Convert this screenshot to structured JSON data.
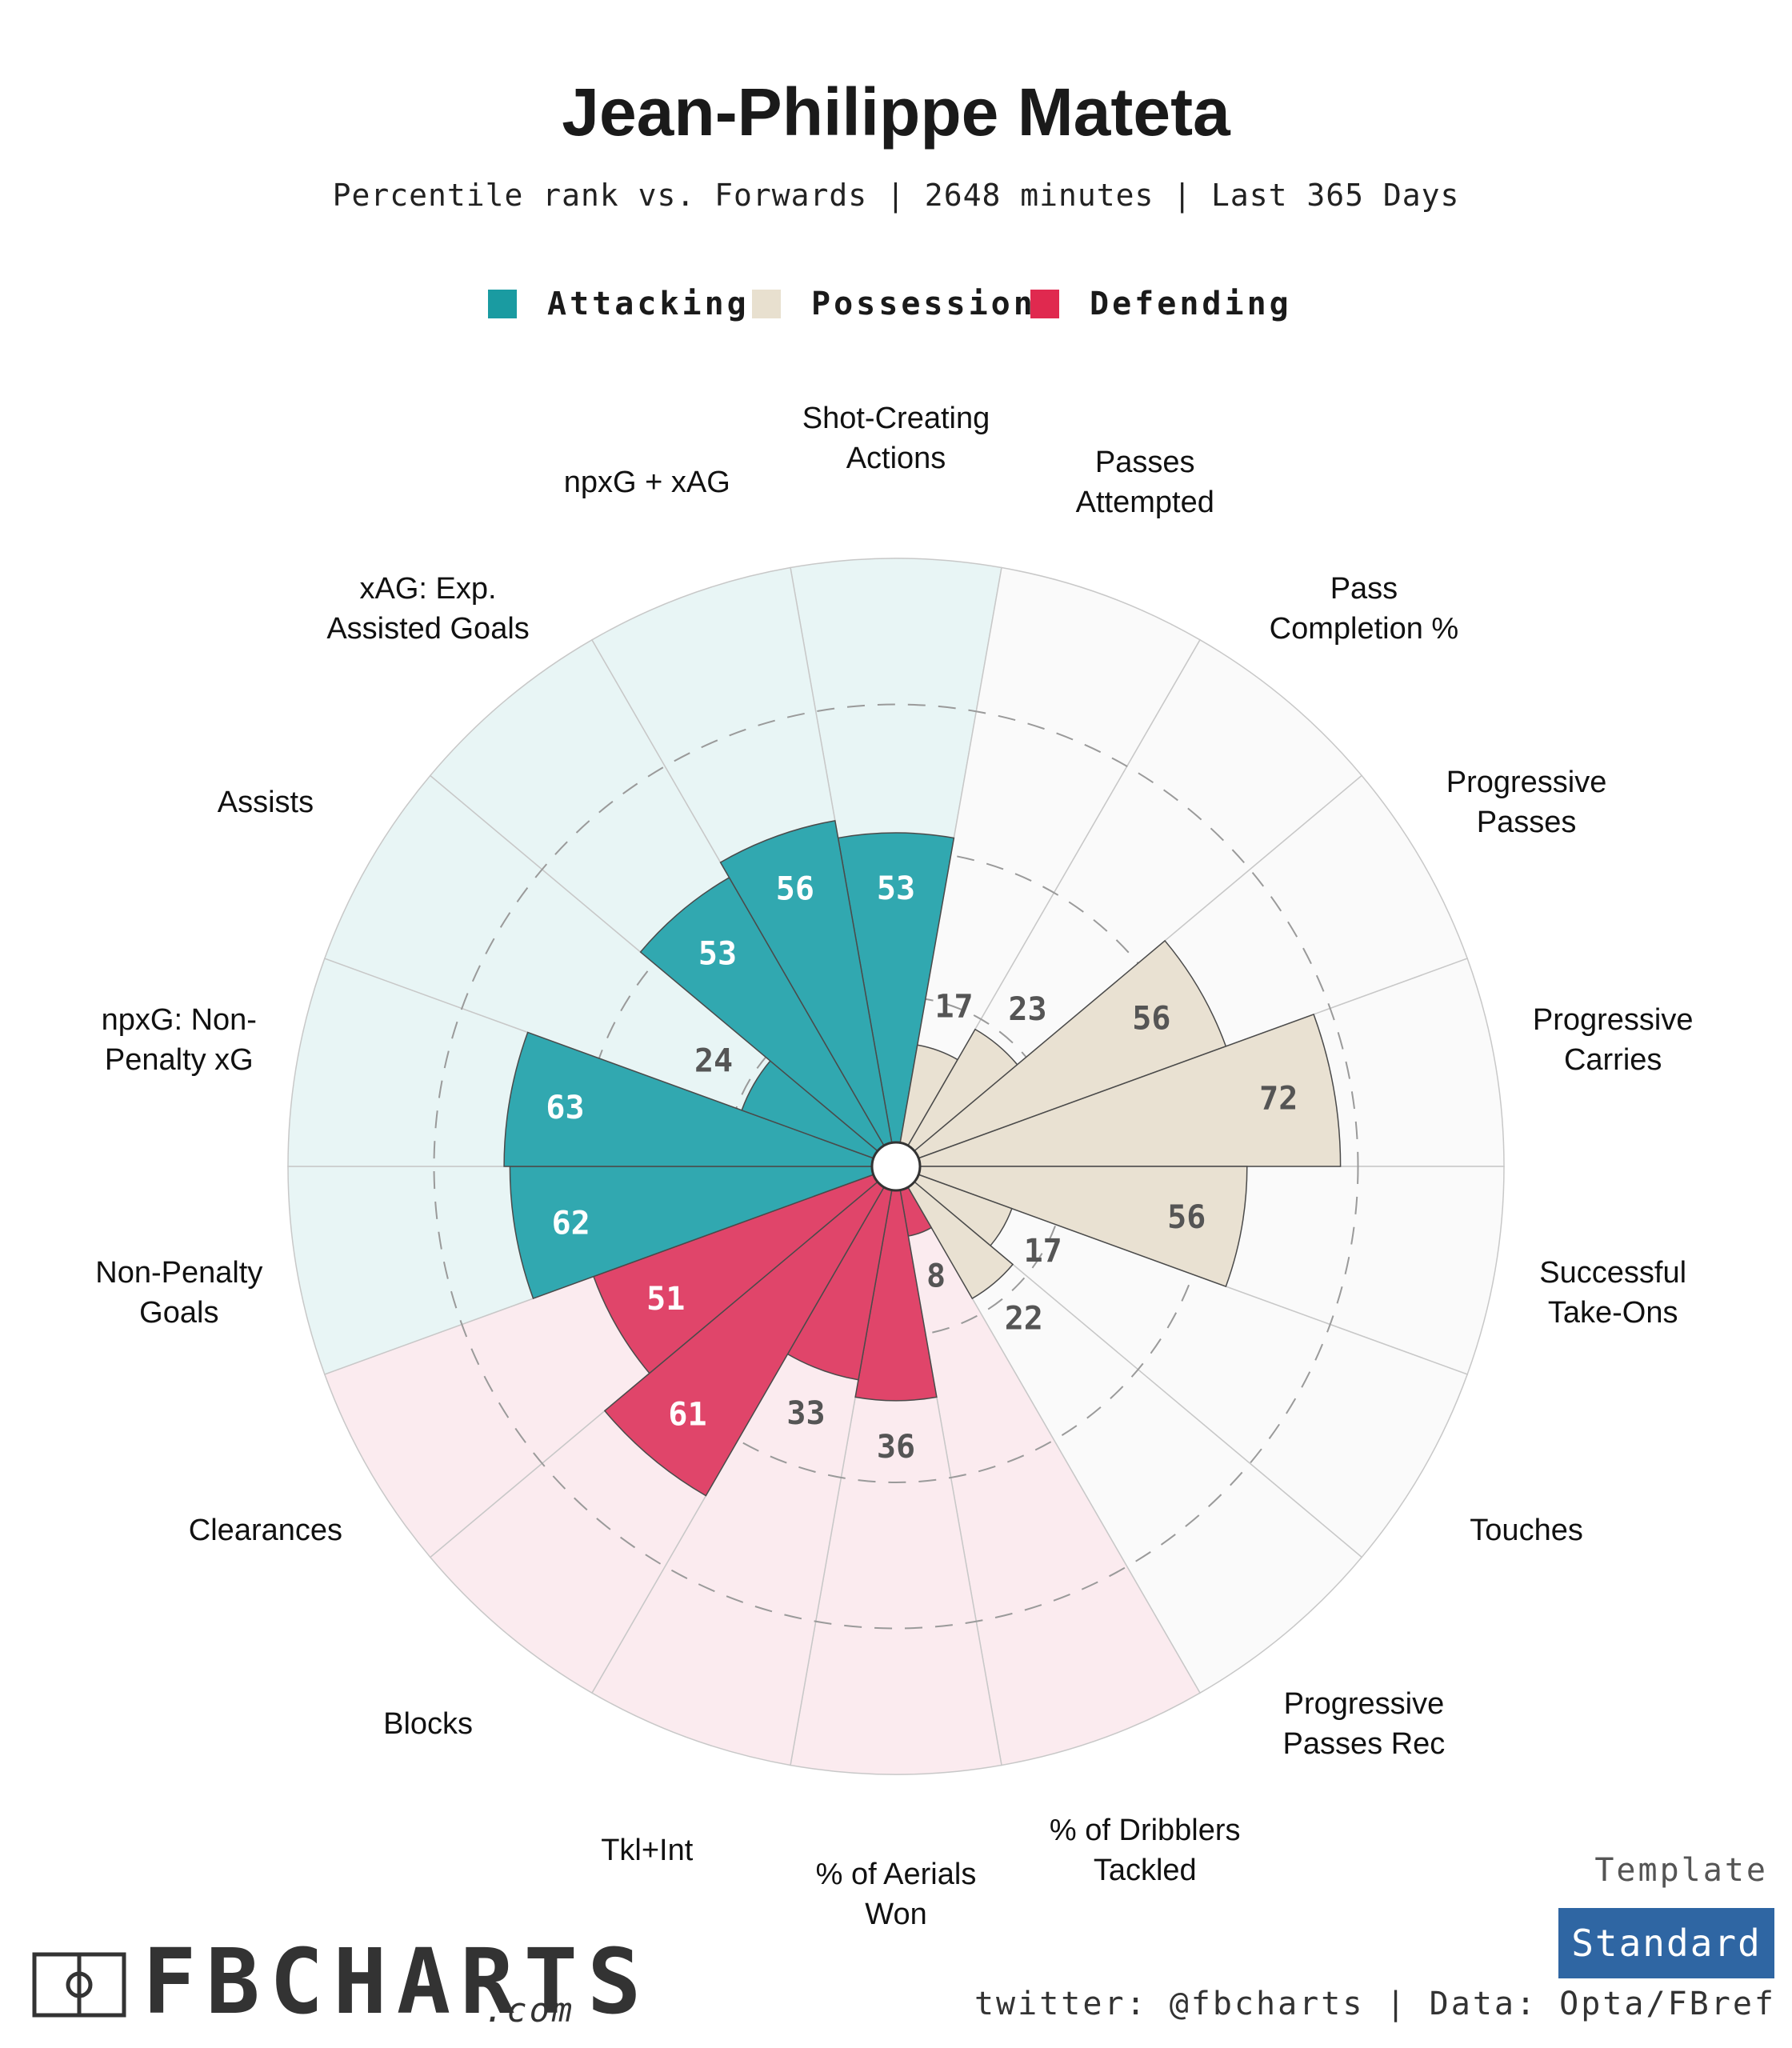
{
  "header": {
    "title": "Jean-Philippe Mateta",
    "subtitle": "Percentile rank vs. Forwards | 2648 minutes | Last 365 Days"
  },
  "legend": [
    {
      "label": "Attacking",
      "color": "#1a9ba1"
    },
    {
      "label": "Possession",
      "color": "#e8e0cf"
    },
    {
      "label": "Defending",
      "color": "#e0294f"
    }
  ],
  "chart_data": {
    "type": "polar-bar",
    "max": 100,
    "categories": [
      {
        "label": "Shot-Creating Actions",
        "value": 53,
        "group": "Attacking"
      },
      {
        "label": "Passes Attempted",
        "value": 17,
        "group": "Possession"
      },
      {
        "label": "Pass Completion %",
        "value": 23,
        "group": "Possession"
      },
      {
        "label": "Progressive Passes",
        "value": 56,
        "group": "Possession"
      },
      {
        "label": "Progressive Carries",
        "value": 72,
        "group": "Possession"
      },
      {
        "label": "Successful Take-Ons",
        "value": 56,
        "group": "Possession"
      },
      {
        "label": "Touches",
        "value": 17,
        "group": "Possession"
      },
      {
        "label": "Progressive Passes Rec",
        "value": 22,
        "group": "Possession"
      },
      {
        "label": "% of Dribblers Tackled",
        "value": 8,
        "group": "Defending"
      },
      {
        "label": "% of Aerials Won",
        "value": 36,
        "group": "Defending"
      },
      {
        "label": "Tkl+Int",
        "value": 33,
        "group": "Defending"
      },
      {
        "label": "Blocks",
        "value": 61,
        "group": "Defending"
      },
      {
        "label": "Clearances",
        "value": 51,
        "group": "Defending"
      },
      {
        "label": "Non-Penalty Goals",
        "value": 62,
        "group": "Attacking"
      },
      {
        "label": "npxG: Non-Penalty xG",
        "value": 63,
        "group": "Attacking"
      },
      {
        "label": "Assists",
        "value": 24,
        "group": "Attacking"
      },
      {
        "label": "xAG: Exp. Assisted Goals",
        "value": 53,
        "group": "Attacking"
      },
      {
        "label": "npxG + xAG",
        "value": 56,
        "group": "Attacking"
      }
    ],
    "label_lines": [
      [
        "Shot-Creating",
        "Actions"
      ],
      [
        "Passes",
        "Attempted"
      ],
      [
        "Pass",
        "Completion %"
      ],
      [
        "Progressive",
        "Passes"
      ],
      [
        "Progressive",
        "Carries"
      ],
      [
        "Successful",
        "Take-Ons"
      ],
      [
        "Touches"
      ],
      [
        "Progressive",
        "Passes Rec"
      ],
      [
        "% of Dribblers",
        "Tackled"
      ],
      [
        "% of Aerials",
        "Won"
      ],
      [
        "Tkl+Int"
      ],
      [
        "Blocks"
      ],
      [
        "Clearances"
      ],
      [
        "Non-Penalty",
        "Goals"
      ],
      [
        "npxG: Non-",
        "Penalty xG"
      ],
      [
        "Assists"
      ],
      [
        "xAG: Exp.",
        "Assisted Goals"
      ],
      [
        "npxG + xAG"
      ]
    ],
    "colors": {
      "Attacking": {
        "bar": "#31a8b0",
        "bg": "#e8f5f5",
        "text": "#ffffff"
      },
      "Possession": {
        "bar": "#e9e1d2",
        "bg": "#fafafa",
        "text": "#555555"
      },
      "Defending": {
        "bar": "#e0456a",
        "bg": "#fbebef",
        "text": "#ffffff"
      }
    },
    "gridlines": [
      25,
      50,
      75
    ]
  },
  "footer": {
    "template_label": "Template",
    "template_value": "Standard",
    "credit": "twitter: @fbcharts | Data: Opta/FBref",
    "logo_text": "FBCHARTS",
    "logo_suffix": ".com"
  }
}
